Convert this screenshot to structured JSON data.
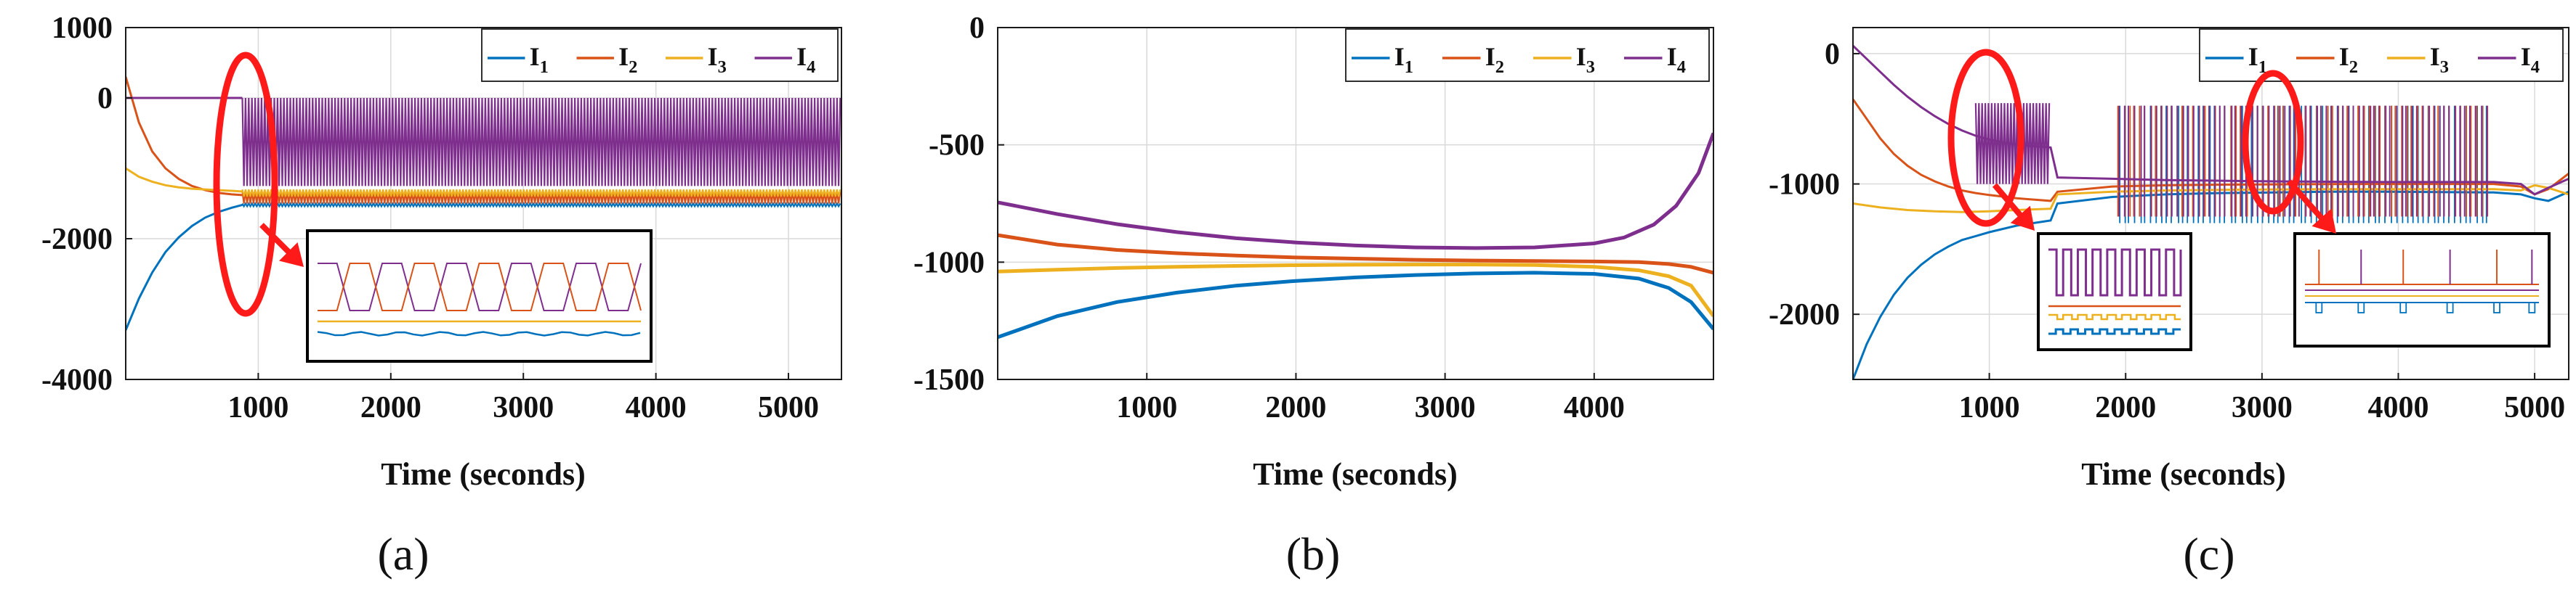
{
  "colors": {
    "I1": "#0072BD",
    "I2": "#D95319",
    "I3": "#EDB120",
    "I4": "#7E2F8E",
    "highlight": "#FF1A1A",
    "grid": "#D9D9D9",
    "axis": "#1A1A1A"
  },
  "chart_data": [
    {
      "id": "a",
      "type": "line",
      "panel_label": "(a)",
      "xlabel": "Time (seconds)",
      "ylabel": "",
      "xlim": [
        0,
        5400
      ],
      "ylim": [
        -4000,
        1000
      ],
      "xticks": [
        1000,
        2000,
        3000,
        4000,
        5000
      ],
      "xtick_labels": [
        "1000",
        "2000",
        "3000",
        "4000",
        "5000"
      ],
      "yticks": [
        1000,
        0,
        -2000,
        -4000
      ],
      "ytick_labels": [
        "1000",
        "0",
        "-2000",
        "-4000"
      ],
      "grid": true,
      "legend_position": "top-right",
      "series": [
        {
          "name": "I1",
          "label_base": "I",
          "label_sub": "1",
          "color_key": "I1",
          "x": [
            0,
            100,
            200,
            300,
            400,
            500,
            600,
            700,
            800,
            880
          ],
          "y": [
            -3300,
            -2850,
            -2480,
            -2190,
            -1980,
            -1820,
            -1700,
            -1620,
            -1560,
            -1520
          ],
          "oscillation": {
            "start": 880,
            "end": 5400,
            "y_low": -1540,
            "y_high": -1500
          }
        },
        {
          "name": "I2",
          "label_base": "I",
          "label_sub": "2",
          "color_key": "I2",
          "x": [
            0,
            100,
            200,
            300,
            400,
            500,
            600,
            700,
            800,
            880
          ],
          "y": [
            300,
            -350,
            -760,
            -1000,
            -1150,
            -1250,
            -1310,
            -1350,
            -1370,
            -1380
          ],
          "oscillation": {
            "start": 880,
            "end": 5400,
            "y_low": -1500,
            "y_high": -1330
          }
        },
        {
          "name": "I3",
          "label_base": "I",
          "label_sub": "3",
          "color_key": "I3",
          "x": [
            0,
            100,
            200,
            300,
            400,
            500,
            600,
            700,
            800,
            880
          ],
          "y": [
            -1000,
            -1120,
            -1190,
            -1240,
            -1270,
            -1290,
            -1300,
            -1310,
            -1320,
            -1330
          ],
          "oscillation": {
            "start": 880,
            "end": 5400,
            "y_low": -1400,
            "y_high": -1300
          }
        },
        {
          "name": "I4",
          "label_base": "I",
          "label_sub": "4",
          "color_key": "I4",
          "x": [
            0,
            500,
            880
          ],
          "y": [
            0,
            0,
            0
          ],
          "oscillation": {
            "start": 880,
            "end": 5400,
            "y_low": -1250,
            "y_high": 0
          }
        }
      ]
    },
    {
      "id": "b",
      "type": "line",
      "panel_label": "(b)",
      "xlabel": "Time (seconds)",
      "ylabel": "",
      "xlim": [
        0,
        4800
      ],
      "ylim": [
        -1500,
        0
      ],
      "xticks": [
        1000,
        2000,
        3000,
        4000
      ],
      "xtick_labels": [
        "1000",
        "2000",
        "3000",
        "4000"
      ],
      "yticks": [
        0,
        -500,
        -1000,
        -1500
      ],
      "ytick_labels": [
        "0",
        "-500",
        "-1000",
        "-1500"
      ],
      "grid": true,
      "legend_position": "top-right",
      "series": [
        {
          "name": "I1",
          "label_base": "I",
          "label_sub": "1",
          "color_key": "I1",
          "x": [
            0,
            400,
            800,
            1200,
            1600,
            2000,
            2400,
            2800,
            3200,
            3600,
            4000,
            4300,
            4500,
            4650,
            4800
          ],
          "y": [
            -1320,
            -1230,
            -1170,
            -1130,
            -1100,
            -1080,
            -1065,
            -1055,
            -1048,
            -1045,
            -1050,
            -1070,
            -1110,
            -1170,
            -1285
          ]
        },
        {
          "name": "I2",
          "label_base": "I",
          "label_sub": "2",
          "color_key": "I2",
          "x": [
            0,
            400,
            800,
            1200,
            1600,
            2000,
            2400,
            2800,
            3200,
            3600,
            4000,
            4300,
            4500,
            4650,
            4800
          ],
          "y": [
            -885,
            -925,
            -948,
            -962,
            -972,
            -980,
            -985,
            -990,
            -993,
            -995,
            -997,
            -1000,
            -1008,
            -1020,
            -1045
          ]
        },
        {
          "name": "I3",
          "label_base": "I",
          "label_sub": "3",
          "color_key": "I3",
          "x": [
            0,
            400,
            800,
            1200,
            1600,
            2000,
            2400,
            2800,
            3200,
            3600,
            4000,
            4300,
            4500,
            4650,
            4800
          ],
          "y": [
            -1040,
            -1032,
            -1025,
            -1020,
            -1016,
            -1013,
            -1011,
            -1010,
            -1010,
            -1012,
            -1020,
            -1035,
            -1060,
            -1100,
            -1230
          ]
        },
        {
          "name": "I4",
          "label_base": "I",
          "label_sub": "4",
          "color_key": "I4",
          "x": [
            0,
            400,
            800,
            1200,
            1600,
            2000,
            2400,
            2800,
            3200,
            3600,
            4000,
            4200,
            4400,
            4550,
            4700,
            4800
          ],
          "y": [
            -745,
            -795,
            -838,
            -872,
            -898,
            -916,
            -929,
            -937,
            -940,
            -937,
            -920,
            -895,
            -840,
            -760,
            -620,
            -450
          ]
        }
      ]
    },
    {
      "id": "c",
      "type": "line",
      "panel_label": "(c)",
      "xlabel": "Time (seconds)",
      "ylabel": "",
      "xlim": [
        0,
        5250
      ],
      "ylim": [
        -2500,
        200
      ],
      "xticks": [
        1000,
        2000,
        3000,
        4000,
        5000
      ],
      "xtick_labels": [
        "1000",
        "2000",
        "3000",
        "4000",
        "5000"
      ],
      "yticks": [
        0,
        -1000,
        -2000
      ],
      "ytick_labels": [
        "0",
        "-1000",
        "-2000"
      ],
      "grid": true,
      "legend_position": "top-right",
      "series": [
        {
          "name": "I1",
          "label_base": "I",
          "label_sub": "1",
          "color_key": "I1",
          "x": [
            0,
            100,
            200,
            300,
            400,
            500,
            600,
            700,
            800,
            900,
            1000,
            1200,
            1450,
            1500,
            1900,
            2300,
            2700,
            3100,
            3500,
            3900,
            4300,
            4700,
            4900,
            5000,
            5100,
            5250
          ],
          "y": [
            -2500,
            -2230,
            -2020,
            -1850,
            -1720,
            -1620,
            -1540,
            -1480,
            -1430,
            -1400,
            -1370,
            -1320,
            -1280,
            -1150,
            -1100,
            -1080,
            -1070,
            -1065,
            -1060,
            -1060,
            -1062,
            -1065,
            -1080,
            -1110,
            -1130,
            -1060
          ],
          "spikes": {
            "start": 1950,
            "end": 4650,
            "y_top": -400,
            "y_bottom": -1300
          }
        },
        {
          "name": "I2",
          "label_base": "I",
          "label_sub": "2",
          "color_key": "I2",
          "x": [
            0,
            100,
            200,
            300,
            400,
            500,
            600,
            700,
            800,
            900,
            1000,
            1200,
            1450,
            1500,
            1900,
            2300,
            2700,
            3100,
            3500,
            3900,
            4300,
            4700,
            4900,
            5000,
            5100,
            5250
          ],
          "y": [
            -350,
            -500,
            -650,
            -770,
            -860,
            -930,
            -980,
            -1020,
            -1050,
            -1070,
            -1085,
            -1110,
            -1130,
            -1060,
            -1020,
            -1010,
            -1005,
            -1003,
            -1001,
            -1000,
            -1000,
            -1000,
            -1020,
            -1080,
            -1040,
            -920
          ],
          "spikes": {
            "start": 1950,
            "end": 4650,
            "y_top": -400,
            "y_bottom": -1250
          }
        },
        {
          "name": "I3",
          "label_base": "I",
          "label_sub": "3",
          "color_key": "I3",
          "x": [
            0,
            200,
            400,
            600,
            800,
            1000,
            1200,
            1450,
            1500,
            1900,
            2300,
            2700,
            3100,
            3500,
            3900,
            4300,
            4700,
            4900,
            5000,
            5100,
            5250
          ],
          "y": [
            -1150,
            -1180,
            -1200,
            -1210,
            -1215,
            -1210,
            -1200,
            -1190,
            -1080,
            -1060,
            -1050,
            -1045,
            -1042,
            -1040,
            -1040,
            -1040,
            -1040,
            -1050,
            -1010,
            -1030,
            -1080
          ]
        },
        {
          "name": "I4",
          "label_base": "I",
          "label_sub": "4",
          "color_key": "I4",
          "x": [
            0,
            100,
            200,
            300,
            400,
            500,
            600,
            700,
            800,
            900,
            1000,
            1200,
            1450,
            1500,
            1900,
            2300,
            2700,
            3100,
            3500,
            3900,
            4300,
            4700,
            4900,
            5000,
            5100,
            5250
          ],
          "y": [
            60,
            -40,
            -140,
            -240,
            -330,
            -410,
            -480,
            -540,
            -590,
            -630,
            -660,
            -700,
            -720,
            -950,
            -960,
            -970,
            -975,
            -980,
            -983,
            -985,
            -985,
            -985,
            -1000,
            -1080,
            -1030,
            -960
          ],
          "oscillation": {
            "start": 900,
            "end": 1450,
            "y_low": -1000,
            "y_high": -380
          },
          "spikes": {
            "start": 1950,
            "end": 4650,
            "y_top": -400,
            "y_bottom": -1250
          }
        }
      ]
    }
  ]
}
